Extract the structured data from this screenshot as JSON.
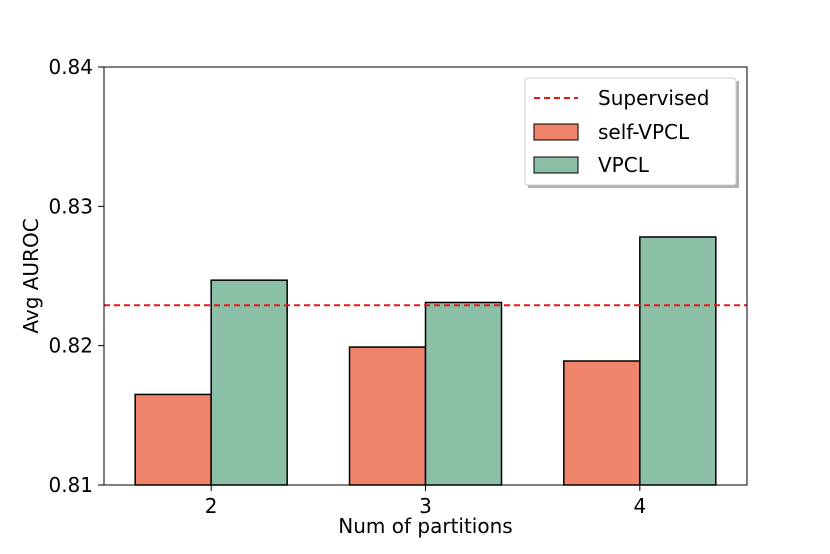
{
  "chart_data": {
    "type": "bar",
    "title": "",
    "xlabel": "Num of partitions",
    "ylabel": "Avg AUROC",
    "categories": [
      "2",
      "3",
      "4"
    ],
    "ylim": [
      0.81,
      0.84
    ],
    "yticks": [
      "0.81",
      "0.82",
      "0.83",
      "0.84"
    ],
    "grid": false,
    "legend_position": "top-right",
    "series": [
      {
        "name": "self-VPCL",
        "color": "#f0846b",
        "values": [
          0.8165,
          0.8199,
          0.8189
        ]
      },
      {
        "name": "VPCL",
        "color": "#8bc0a6",
        "values": [
          0.8247,
          0.8231,
          0.8278
        ]
      }
    ],
    "reference_line": {
      "name": "Supervised",
      "value": 0.8229,
      "color": "#e8191b",
      "style": "dashed"
    }
  }
}
